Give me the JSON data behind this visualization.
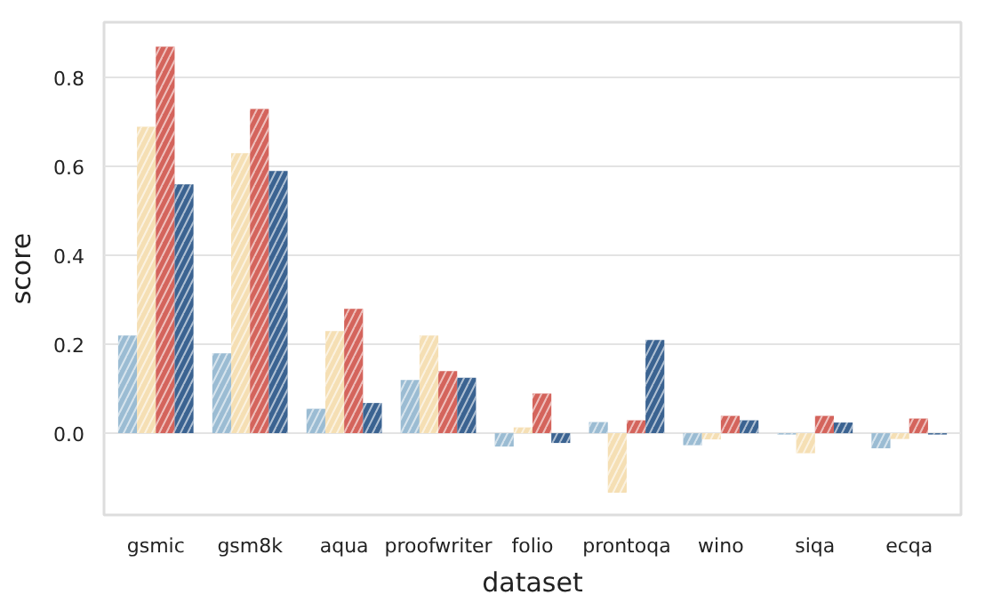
{
  "chart_data": {
    "type": "bar",
    "xlabel": "dataset",
    "ylabel": "score",
    "categories": [
      "gsmic",
      "gsm8k",
      "aqua",
      "proofwriter",
      "folio",
      "prontoqa",
      "wino",
      "siqa",
      "ecqa"
    ],
    "series": [
      {
        "color": "#9bbcd3",
        "values": [
          0.22,
          0.18,
          0.055,
          0.12,
          -0.03,
          0.025,
          -0.027,
          -0.003,
          -0.034
        ]
      },
      {
        "color": "#f5dfb4",
        "values": [
          0.69,
          0.63,
          0.23,
          0.22,
          0.013,
          -0.134,
          -0.014,
          -0.045,
          -0.013
        ]
      },
      {
        "color": "#d4645c",
        "values": [
          0.87,
          0.73,
          0.28,
          0.14,
          0.089,
          0.029,
          0.039,
          0.039,
          0.033
        ]
      },
      {
        "color": "#3b6391",
        "values": [
          0.56,
          0.59,
          0.068,
          0.125,
          -0.022,
          0.21,
          0.029,
          0.024,
          -0.003
        ]
      }
    ],
    "ylim": [
      -0.184,
      0.925
    ],
    "yticks": [
      {
        "value": 0,
        "label": "0.0"
      },
      0.2,
      0.4,
      0.6,
      0.8
    ],
    "grid": "y"
  }
}
